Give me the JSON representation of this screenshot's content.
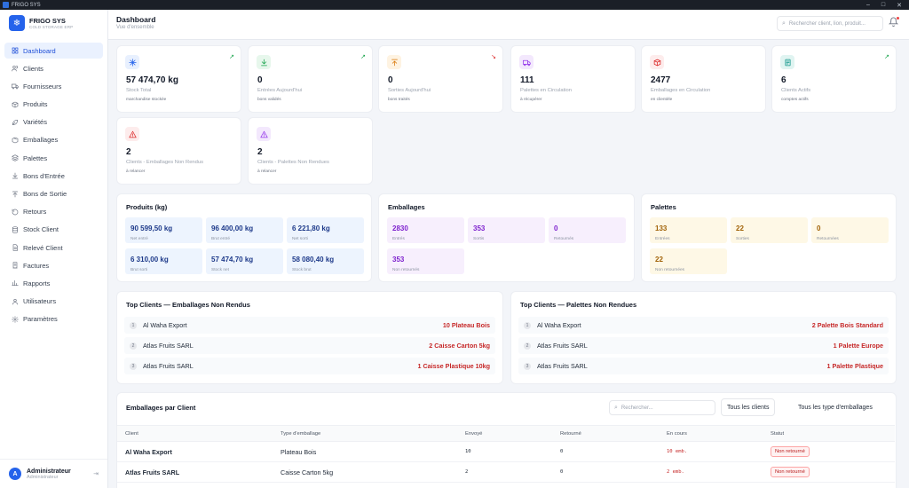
{
  "window": {
    "title": "FRIGO SYS"
  },
  "brand": {
    "name": "FRIGO SYS",
    "subtitle": "COLD STORAGE ERP"
  },
  "sidebar": {
    "items": [
      {
        "label": "Dashboard",
        "icon": "grid-icon",
        "active": true
      },
      {
        "label": "Clients",
        "icon": "users-icon"
      },
      {
        "label": "Fournisseurs",
        "icon": "truck-icon"
      },
      {
        "label": "Produits",
        "icon": "box-icon"
      },
      {
        "label": "Variétés",
        "icon": "leaf-icon"
      },
      {
        "label": "Emballages",
        "icon": "package-icon"
      },
      {
        "label": "Palettes",
        "icon": "layers-icon"
      },
      {
        "label": "Bons d'Entrée",
        "icon": "arrow-down-icon"
      },
      {
        "label": "Bons de Sortie",
        "icon": "arrow-up-icon"
      },
      {
        "label": "Retours",
        "icon": "return-icon"
      },
      {
        "label": "Stock Client",
        "icon": "database-icon"
      },
      {
        "label": "Relevé Client",
        "icon": "file-text-icon"
      },
      {
        "label": "Factures",
        "icon": "invoice-icon"
      },
      {
        "label": "Rapports",
        "icon": "bar-chart-icon"
      },
      {
        "label": "Utilisateurs",
        "icon": "user-icon"
      },
      {
        "label": "Paramètres",
        "icon": "gear-icon"
      }
    ]
  },
  "user": {
    "initial": "A",
    "name": "Administrateur",
    "role": "Administrateur"
  },
  "header": {
    "title": "Dashboard",
    "subtitle": "Vue d'ensemble",
    "search_placeholder": "Rechercher client, lion, produit..."
  },
  "stats": [
    {
      "value": "57 474,70 kg",
      "label": "Stock Total",
      "sub": "marchandise stockée",
      "icon": "snowflake-icon",
      "color": "#2563eb",
      "bg": "#e8f0fe",
      "trend": "up"
    },
    {
      "value": "0",
      "label": "Entrées Aujourd'hui",
      "sub": "bons validés",
      "icon": "download-icon",
      "color": "#16a34a",
      "bg": "#e7f7ec",
      "trend": "up"
    },
    {
      "value": "0",
      "label": "Sorties Aujourd'hui",
      "sub": "bons traités",
      "icon": "upload-icon",
      "color": "#d97706",
      "bg": "#fef3e2",
      "trend": "down"
    },
    {
      "value": "111",
      "label": "Palettes en Circulation",
      "sub": "à récupérer",
      "icon": "truck-icon",
      "color": "#9333ea",
      "bg": "#f3e8fd"
    },
    {
      "value": "2477",
      "label": "Emballages en Circulation",
      "sub": "en clientèle",
      "icon": "package-icon",
      "color": "#dc2626",
      "bg": "#fdecec"
    },
    {
      "value": "6",
      "label": "Clients Actifs",
      "sub": "comptes actifs",
      "icon": "file-icon",
      "color": "#0d9488",
      "bg": "#e0f4f1",
      "trend": "up"
    },
    {
      "value": "2",
      "label": "Clients - Emballages Non Rendus",
      "sub": "à relancer",
      "icon": "warning-icon",
      "color": "#dc2626",
      "bg": "#fdecec"
    },
    {
      "value": "2",
      "label": "Clients - Palettes Non Rendues",
      "sub": "à relancer",
      "icon": "warning-icon",
      "color": "#9333ea",
      "bg": "#f3e8fd"
    }
  ],
  "produits": {
    "title": "Produits (kg)",
    "tiles": [
      {
        "value": "90 599,50 kg",
        "label": "Net entré"
      },
      {
        "value": "96 400,00 kg",
        "label": "Brut entré"
      },
      {
        "value": "6 221,80 kg",
        "label": "Net sorti"
      },
      {
        "value": "6 310,00 kg",
        "label": "Brut sorti"
      },
      {
        "value": "57 474,70 kg",
        "label": "Stock net"
      },
      {
        "value": "58 080,40 kg",
        "label": "Stock brut"
      }
    ]
  },
  "emballages": {
    "title": "Emballages",
    "tiles": [
      {
        "value": "2830",
        "label": "Entrés"
      },
      {
        "value": "353",
        "label": "Sortis"
      },
      {
        "value": "0",
        "label": "Retournés"
      },
      {
        "value": "353",
        "label": "Non retournés"
      }
    ]
  },
  "palettes": {
    "title": "Palettes",
    "tiles": [
      {
        "value": "133",
        "label": "Entrées"
      },
      {
        "value": "22",
        "label": "Sorties"
      },
      {
        "value": "0",
        "label": "Retournées"
      },
      {
        "value": "22",
        "label": "Non retournées"
      }
    ]
  },
  "top_emballages": {
    "title": "Top Clients — Emballages Non Rendus",
    "rows": [
      {
        "rank": "1",
        "name": "Al Waha Export",
        "item": "10 Plateau Bois"
      },
      {
        "rank": "2",
        "name": "Atlas Fruits SARL",
        "item": "2 Caisse Carton 5kg"
      },
      {
        "rank": "3",
        "name": "Atlas Fruits SARL",
        "item": "1 Caisse Plastique 10kg"
      }
    ]
  },
  "top_palettes": {
    "title": "Top Clients — Palettes Non Rendues",
    "rows": [
      {
        "rank": "1",
        "name": "Al Waha Export",
        "item": "2 Palette Bois Standard"
      },
      {
        "rank": "2",
        "name": "Atlas Fruits SARL",
        "item": "1 Palette Europe"
      },
      {
        "rank": "3",
        "name": "Atlas Fruits SARL",
        "item": "1 Palette Plastique"
      }
    ]
  },
  "table": {
    "title": "Emballages par Client",
    "search_placeholder": "Rechercher...",
    "filter_clients": "Tous les clients",
    "filter_types": "Tous les type d'emballages",
    "columns": [
      "Client",
      "Type d'emballage",
      "Envoyé",
      "Retourné",
      "En cours",
      "Statut"
    ],
    "rows": [
      {
        "client": "Al Waha Export",
        "type": "Plateau Bois",
        "sent": "10",
        "returned": "0",
        "current": "10 emb.",
        "status": "Non retourné"
      },
      {
        "client": "Atlas Fruits SARL",
        "type": "Caisse Carton 5kg",
        "sent": "2",
        "returned": "0",
        "current": "2 emb.",
        "status": "Non retourné"
      }
    ]
  }
}
